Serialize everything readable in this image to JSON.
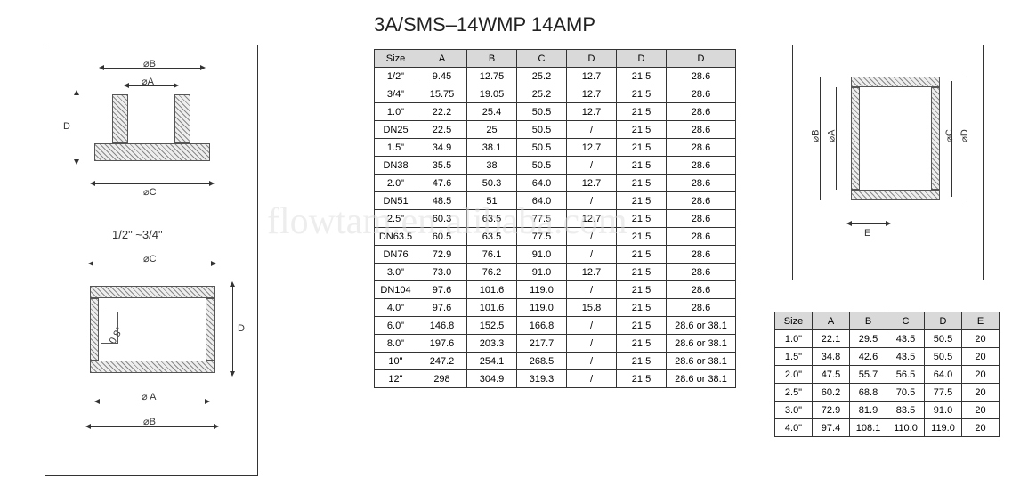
{
  "title": "3A/SMS–14WMP 14AMP",
  "left_diagram": {
    "top": {
      "labels": {
        "b": "⌀B",
        "a": "⌀A",
        "d": "D",
        "c": "⌀C"
      }
    },
    "note": "1/2\" ~3/4\"",
    "bottom": {
      "labels": {
        "c_top": "⌀C",
        "angle": "0.8°",
        "d": "D",
        "a": "⌀ A",
        "b": "⌀B"
      }
    }
  },
  "right_diagram": {
    "labels": {
      "b": "⌀B",
      "a": "⌀A",
      "c": "⌀C",
      "d": "⌀D",
      "e": "E"
    }
  },
  "main_table": {
    "headers": [
      "Size",
      "A",
      "B",
      "C",
      "D",
      "D",
      "D"
    ],
    "rows": [
      [
        "1/2\"",
        "9.45",
        "12.75",
        "25.2",
        "12.7",
        "21.5",
        "28.6"
      ],
      [
        "3/4\"",
        "15.75",
        "19.05",
        "25.2",
        "12.7",
        "21.5",
        "28.6"
      ],
      [
        "1.0\"",
        "22.2",
        "25.4",
        "50.5",
        "12.7",
        "21.5",
        "28.6"
      ],
      [
        "DN25",
        "22.5",
        "25",
        "50.5",
        "/",
        "21.5",
        "28.6"
      ],
      [
        "1.5\"",
        "34.9",
        "38.1",
        "50.5",
        "12.7",
        "21.5",
        "28.6"
      ],
      [
        "DN38",
        "35.5",
        "38",
        "50.5",
        "/",
        "21.5",
        "28.6"
      ],
      [
        "2.0\"",
        "47.6",
        "50.3",
        "64.0",
        "12.7",
        "21.5",
        "28.6"
      ],
      [
        "DN51",
        "48.5",
        "51",
        "64.0",
        "/",
        "21.5",
        "28.6"
      ],
      [
        "2.5\"",
        "60.3",
        "63.5",
        "77.5",
        "12.7",
        "21.5",
        "28.6"
      ],
      [
        "DN63.5",
        "60.5",
        "63.5",
        "77.5",
        "/",
        "21.5",
        "28.6"
      ],
      [
        "DN76",
        "72.9",
        "76.1",
        "91.0",
        "/",
        "21.5",
        "28.6"
      ],
      [
        "3.0\"",
        "73.0",
        "76.2",
        "91.0",
        "12.7",
        "21.5",
        "28.6"
      ],
      [
        "DN104",
        "97.6",
        "101.6",
        "119.0",
        "/",
        "21.5",
        "28.6"
      ],
      [
        "4.0\"",
        "97.6",
        "101.6",
        "119.0",
        "15.8",
        "21.5",
        "28.6"
      ],
      [
        "6.0\"",
        "146.8",
        "152.5",
        "166.8",
        "/",
        "21.5",
        "28.6 or 38.1"
      ],
      [
        "8.0\"",
        "197.6",
        "203.3",
        "217.7",
        "/",
        "21.5",
        "28.6 or 38.1"
      ],
      [
        "10\"",
        "247.2",
        "254.1",
        "268.5",
        "/",
        "21.5",
        "28.6 or 38.1"
      ],
      [
        "12\"",
        "298",
        "304.9",
        "319.3",
        "/",
        "21.5",
        "28.6 or 38.1"
      ]
    ]
  },
  "side_table": {
    "headers": [
      "Size",
      "A",
      "B",
      "C",
      "D",
      "E"
    ],
    "rows": [
      [
        "1.0\"",
        "22.1",
        "29.5",
        "43.5",
        "50.5",
        "20"
      ],
      [
        "1.5\"",
        "34.8",
        "42.6",
        "43.5",
        "50.5",
        "20"
      ],
      [
        "2.0\"",
        "47.5",
        "55.7",
        "56.5",
        "64.0",
        "20"
      ],
      [
        "2.5\"",
        "60.2",
        "68.8",
        "70.5",
        "77.5",
        "20"
      ],
      [
        "3.0\"",
        "72.9",
        "81.9",
        "83.5",
        "91.0",
        "20"
      ],
      [
        "4.0\"",
        "97.4",
        "108.1",
        "110.0",
        "119.0",
        "20"
      ]
    ]
  },
  "watermark": "flowtam.en.alibaba.com",
  "colors": {
    "border": "#333333",
    "header_bg": "#d9d9d9",
    "text": "#222222",
    "shape_fill": "#eeeeee"
  }
}
